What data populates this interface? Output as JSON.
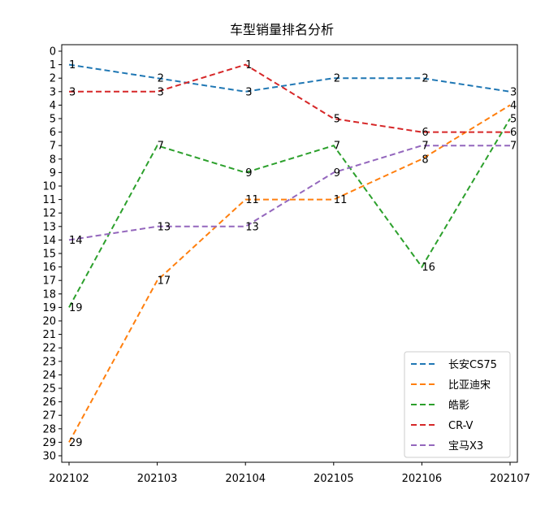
{
  "chart_data": {
    "type": "line",
    "title": "车型销量排名分析",
    "xlabel": "",
    "ylabel": "",
    "categories": [
      "202102",
      "202103",
      "202104",
      "202105",
      "202106",
      "202107"
    ],
    "ylim": [
      0,
      30
    ],
    "y_inverted": true,
    "y_ticks": [
      0,
      1,
      2,
      3,
      4,
      5,
      6,
      7,
      8,
      9,
      10,
      11,
      12,
      13,
      14,
      15,
      16,
      17,
      18,
      19,
      20,
      21,
      22,
      23,
      24,
      25,
      26,
      27,
      28,
      29,
      30
    ],
    "line_style": "dashed",
    "grid": false,
    "legend_position": "lower-right",
    "series": [
      {
        "name": "长安CS75",
        "color": "#1f77b4",
        "values": [
          1,
          2,
          3,
          2,
          2,
          3
        ]
      },
      {
        "name": "比亚迪宋",
        "color": "#ff7f0e",
        "values": [
          29,
          17,
          11,
          11,
          8,
          4
        ]
      },
      {
        "name": "皓影",
        "color": "#2ca02c",
        "values": [
          19,
          7,
          9,
          7,
          16,
          5
        ]
      },
      {
        "name": "CR-V",
        "color": "#d62728",
        "values": [
          3,
          3,
          1,
          5,
          6,
          6
        ]
      },
      {
        "name": "宝马X3",
        "color": "#9467bd",
        "values": [
          14,
          13,
          13,
          9,
          7,
          7
        ]
      }
    ]
  }
}
